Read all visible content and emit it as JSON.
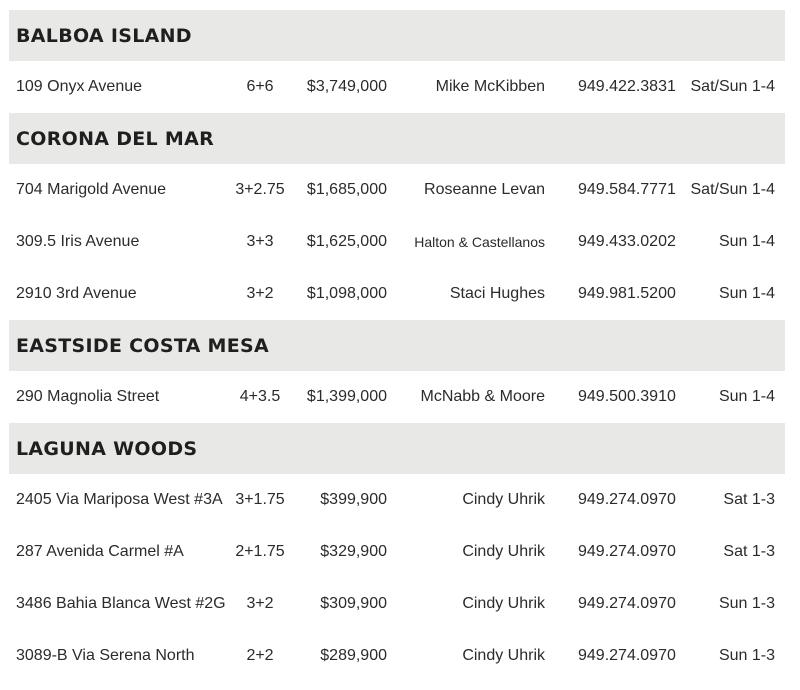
{
  "sections": [
    {
      "title": "BALBOA ISLAND",
      "rows": [
        {
          "address": "109 Onyx Avenue",
          "beds_baths": "6+6",
          "price": "$3,749,000",
          "agent": "Mike McKibben",
          "phone": "949.422.3831",
          "time": "Sat/Sun 1-4"
        }
      ]
    },
    {
      "title": "CORONA DEL MAR",
      "rows": [
        {
          "address": "704 Marigold Avenue",
          "beds_baths": "3+2.75",
          "price": "$1,685,000",
          "agent": "Roseanne Levan",
          "phone": "949.584.7771",
          "time": "Sat/Sun 1-4"
        },
        {
          "address": "309.5 Iris Avenue",
          "beds_baths": "3+3",
          "price": "$1,625,000",
          "agent": "Halton & Castellanos",
          "phone": "949.433.0202",
          "time": "Sun 1-4"
        },
        {
          "address": "2910 3rd Avenue",
          "beds_baths": "3+2",
          "price": "$1,098,000",
          "agent": "Staci Hughes",
          "phone": "949.981.5200",
          "time": "Sun 1-4"
        }
      ]
    },
    {
      "title": "EASTSIDE COSTA MESA",
      "rows": [
        {
          "address": "290 Magnolia Street",
          "beds_baths": "4+3.5",
          "price": "$1,399,000",
          "agent": "McNabb & Moore",
          "phone": "949.500.3910",
          "time": "Sun 1-4"
        }
      ]
    },
    {
      "title": "LAGUNA WOODS",
      "rows": [
        {
          "address": "2405 Via Mariposa West #3A",
          "beds_baths": "3+1.75",
          "price": "$399,900",
          "agent": "Cindy Uhrik",
          "phone": "949.274.0970",
          "time": "Sat 1-3"
        },
        {
          "address": "287 Avenida Carmel #A",
          "beds_baths": "2+1.75",
          "price": "$329,900",
          "agent": "Cindy Uhrik",
          "phone": "949.274.0970",
          "time": "Sat 1-3"
        },
        {
          "address": "3486 Bahia Blanca West #2G",
          "beds_baths": "3+2",
          "price": "$309,900",
          "agent": "Cindy Uhrik",
          "phone": "949.274.0970",
          "time": "Sun 1-3"
        },
        {
          "address": "3089-B Via Serena North",
          "beds_baths": "2+2",
          "price": "$289,900",
          "agent": "Cindy Uhrik",
          "phone": "949.274.0970",
          "time": "Sun 1-3"
        }
      ]
    }
  ],
  "colors": {
    "header_background": "#e8e9e6",
    "header_text": "#1f1f1f",
    "row_text": "#2b2b2b"
  }
}
